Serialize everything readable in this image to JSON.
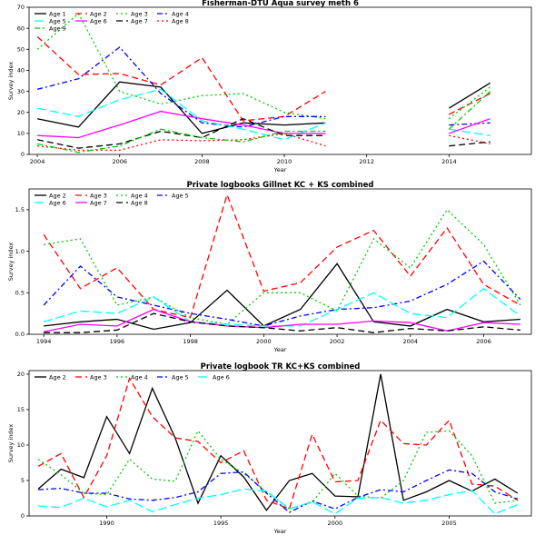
{
  "chart_data": [
    {
      "type": "line",
      "title": "Fisherman-DTU Aqua survey meth 6",
      "xlabel": "Year",
      "ylabel": "Survey index",
      "xlim": [
        2003.8,
        2016
      ],
      "ylim": [
        0,
        70
      ],
      "xticks": [
        2004,
        2006,
        2008,
        2010,
        2012,
        2014
      ],
      "yticks": [
        0,
        10,
        20,
        30,
        40,
        50,
        60,
        70
      ],
      "legend_placement": "top-left",
      "legend_columns": 4,
      "series": [
        {
          "name": "Age 1",
          "color": "#000000",
          "dash": "solid",
          "x": [
            2004,
            2005,
            2006,
            2007,
            2008,
            2009,
            2010,
            2011,
            2014,
            2015
          ],
          "y": [
            17,
            13,
            34.5,
            32,
            10,
            15,
            14,
            15,
            22,
            34
          ]
        },
        {
          "name": "Age 2",
          "color": "#ff0000",
          "dash": "dash",
          "x": [
            2004,
            2005,
            2006,
            2007,
            2008,
            2009,
            2010,
            2011,
            2014,
            2015
          ],
          "y": [
            56,
            38,
            38.5,
            33,
            46,
            16,
            18,
            30,
            19,
            29
          ]
        },
        {
          "name": "Age 3",
          "color": "#00cc00",
          "dash": "dot",
          "x": [
            2004,
            2005,
            2006,
            2007,
            2008,
            2009,
            2010,
            2011,
            2014,
            2015
          ],
          "y": [
            50,
            67,
            30,
            24,
            28,
            29,
            20,
            17,
            17,
            32
          ]
        },
        {
          "name": "Age 4",
          "color": "#0000ff",
          "dash": "dashdot",
          "x": [
            2004,
            2005,
            2006,
            2007,
            2008,
            2009,
            2010,
            2011,
            2014,
            2015
          ],
          "y": [
            31,
            36,
            51,
            29,
            15,
            13,
            18,
            18,
            14,
            15
          ]
        },
        {
          "name": "Age 5",
          "color": "#00ffff",
          "dash": "longdash",
          "x": [
            2004,
            2005,
            2006,
            2007,
            2008,
            2009,
            2010,
            2011,
            2014,
            2015
          ],
          "y": [
            22,
            18,
            26,
            31,
            16,
            12,
            7,
            15,
            12,
            9
          ]
        },
        {
          "name": "Age 6",
          "color": "#ff00ff",
          "dash": "solid",
          "x": [
            2004,
            2005,
            2006,
            2007,
            2008,
            2009,
            2010,
            2011,
            2014,
            2015
          ],
          "y": [
            9,
            8,
            14,
            20.5,
            17,
            14,
            10,
            10,
            10,
            17
          ]
        },
        {
          "name": "Age 7",
          "color": "#000000",
          "dash": "dash",
          "x": [
            2004,
            2005,
            2006,
            2007,
            2008,
            2009,
            2010,
            2011,
            2014,
            2015
          ],
          "y": [
            7,
            3,
            5,
            11,
            8,
            17,
            9,
            9,
            4,
            6
          ]
        },
        {
          "name": "Age 8",
          "color": "#ff0000",
          "dash": "dot",
          "x": [
            2004,
            2005,
            2006,
            2007,
            2008,
            2009,
            2010,
            2011,
            2014,
            2015
          ],
          "y": [
            4,
            2,
            2,
            7,
            6.5,
            7,
            10,
            4,
            9,
            5
          ]
        },
        {
          "name": "Age 9",
          "color": "#00cc00",
          "dash": "dashdot",
          "x": [
            2004,
            2005,
            2006,
            2007,
            2008,
            2009,
            2010,
            2011,
            2014,
            2015
          ],
          "y": [
            5,
            1,
            4,
            12,
            8,
            6,
            11,
            11,
            12,
            30
          ]
        }
      ]
    },
    {
      "type": "line",
      "title": "Private logbooks Gillnet KC + KS combined",
      "xlabel": "Year",
      "ylabel": "Survey index",
      "xlim": [
        1993.6,
        2007.3
      ],
      "ylim": [
        0,
        1.75
      ],
      "xticks": [
        1994,
        1996,
        1998,
        2000,
        2002,
        2004,
        2006
      ],
      "yticks": [
        0.0,
        0.5,
        1.0,
        1.5
      ],
      "legend_placement": "top-left",
      "legend_columns": 4,
      "series": [
        {
          "name": "Age 2",
          "color": "#000000",
          "dash": "solid",
          "x": [
            1994,
            1995,
            1996,
            1997,
            1998,
            1999,
            2000,
            2001,
            2002,
            2003,
            2004,
            2005,
            2006,
            2007
          ],
          "y": [
            0.1,
            0.15,
            0.18,
            0.06,
            0.14,
            0.53,
            0.1,
            0.3,
            0.85,
            0.15,
            0.1,
            0.3,
            0.15,
            0.18
          ]
        },
        {
          "name": "Age 3",
          "color": "#ff0000",
          "dash": "dash",
          "x": [
            1994,
            1995,
            1996,
            1997,
            1998,
            1999,
            2000,
            2001,
            2002,
            2003,
            2004,
            2005,
            2006,
            2007
          ],
          "y": [
            1.2,
            0.55,
            0.8,
            0.3,
            0.2,
            1.68,
            0.52,
            0.62,
            1.05,
            1.25,
            0.7,
            1.28,
            0.6,
            0.35
          ]
        },
        {
          "name": "Age 4",
          "color": "#00cc00",
          "dash": "dot",
          "x": [
            1994,
            1995,
            1996,
            1997,
            1998,
            1999,
            2000,
            2001,
            2002,
            2003,
            2004,
            2005,
            2006,
            2007
          ],
          "y": [
            1.08,
            1.15,
            0.35,
            0.45,
            0.2,
            0.12,
            0.5,
            0.5,
            0.28,
            1.15,
            0.8,
            1.5,
            1.08,
            0.35
          ]
        },
        {
          "name": "Age 5",
          "color": "#0000ff",
          "dash": "dashdot",
          "x": [
            1994,
            1995,
            1996,
            1997,
            1998,
            1999,
            2000,
            2001,
            2002,
            2003,
            2004,
            2005,
            2006,
            2007
          ],
          "y": [
            0.35,
            0.82,
            0.45,
            0.35,
            0.25,
            0.18,
            0.1,
            0.22,
            0.3,
            0.32,
            0.4,
            0.6,
            0.88,
            0.42
          ]
        },
        {
          "name": "Age 6",
          "color": "#00ffff",
          "dash": "longdash",
          "x": [
            1994,
            1995,
            1996,
            1997,
            1998,
            1999,
            2000,
            2001,
            2002,
            2003,
            2004,
            2005,
            2006,
            2007
          ],
          "y": [
            0.15,
            0.28,
            0.25,
            0.45,
            0.15,
            0.12,
            0.1,
            0.1,
            0.3,
            0.5,
            0.25,
            0.2,
            0.55,
            0.22
          ]
        },
        {
          "name": "Age 7",
          "color": "#ff00ff",
          "dash": "solid",
          "x": [
            1994,
            1995,
            1996,
            1997,
            1998,
            1999,
            2000,
            2001,
            2002,
            2003,
            2004,
            2005,
            2006,
            2007
          ],
          "y": [
            0.03,
            0.12,
            0.1,
            0.3,
            0.15,
            0.1,
            0.08,
            0.12,
            0.12,
            0.16,
            0.14,
            0.04,
            0.14,
            0.12
          ]
        },
        {
          "name": "Age 8",
          "color": "#000000",
          "dash": "dash",
          "x": [
            1994,
            1995,
            1996,
            1997,
            1998,
            1999,
            2000,
            2001,
            2002,
            2003,
            2004,
            2005,
            2006,
            2007
          ],
          "y": [
            0.02,
            0.02,
            0.05,
            0.25,
            0.15,
            0.1,
            0.08,
            0.04,
            0.08,
            0.02,
            0.07,
            0.04,
            0.09,
            0.05
          ]
        }
      ]
    },
    {
      "type": "line",
      "title": "Private logbook TR KC+KS combined",
      "xlabel": "Year",
      "ylabel": "Survey index",
      "xlim": [
        1986.6,
        2008.6
      ],
      "ylim": [
        0,
        20.5
      ],
      "xticks": [
        1990,
        1995,
        2000,
        2005
      ],
      "yticks": [
        0,
        5,
        10,
        15,
        20
      ],
      "legend_placement": "top-left",
      "legend_columns": 5,
      "series": [
        {
          "name": "Age 2",
          "color": "#000000",
          "dash": "solid",
          "x": [
            1987,
            1988,
            1989,
            1990,
            1991,
            1992,
            1993,
            1994,
            1995,
            1996,
            1997,
            1998,
            1999,
            2000,
            2001,
            2002,
            2003,
            2004,
            2005,
            2006,
            2007,
            2008
          ],
          "y": [
            3.8,
            6.6,
            5.4,
            14,
            8.8,
            18,
            11,
            1.8,
            8.5,
            5.5,
            0.8,
            5,
            6,
            2.8,
            2.7,
            20,
            2.2,
            3.4,
            5,
            3.5,
            5.2,
            3.2
          ]
        },
        {
          "name": "Age 3",
          "color": "#ff0000",
          "dash": "dash",
          "x": [
            1987,
            1988,
            1989,
            1990,
            1991,
            1992,
            1993,
            1994,
            1995,
            1996,
            1997,
            1998,
            1999,
            2000,
            2001,
            2002,
            2003,
            2004,
            2005,
            2006,
            2007,
            2008
          ],
          "y": [
            7,
            8.8,
            2.6,
            8.5,
            19.4,
            14,
            11,
            10.5,
            7.5,
            9.2,
            2.2,
            1,
            11.5,
            4.8,
            5,
            13.5,
            10.2,
            10,
            13.5,
            4.5,
            4.2,
            2.2
          ]
        },
        {
          "name": "Age 4",
          "color": "#00cc00",
          "dash": "dot",
          "x": [
            1987,
            1988,
            1989,
            1990,
            1991,
            1992,
            1993,
            1994,
            1995,
            1996,
            1997,
            1998,
            1999,
            2000,
            2001,
            2002,
            2003,
            2004,
            2005,
            2006,
            2007,
            2008
          ],
          "y": [
            8,
            5.8,
            3.2,
            3,
            8,
            5.2,
            4.9,
            12,
            8,
            6,
            3.4,
            1,
            1.9,
            6,
            2.8,
            2.5,
            5,
            11.8,
            12,
            8.5,
            1.8,
            2.2
          ]
        },
        {
          "name": "Age 5",
          "color": "#0000ff",
          "dash": "dashdot",
          "x": [
            1987,
            1988,
            1989,
            1990,
            1991,
            1992,
            1993,
            1994,
            1995,
            1996,
            1997,
            1998,
            1999,
            2000,
            2001,
            2002,
            2003,
            2004,
            2005,
            2006,
            2007,
            2008
          ],
          "y": [
            3.7,
            3.9,
            3.2,
            3.2,
            2.4,
            2.2,
            2.6,
            3.4,
            6,
            6.2,
            3.2,
            0.5,
            2.1,
            1,
            2.6,
            3.7,
            3.4,
            5,
            6.5,
            6,
            3.4,
            2.4
          ]
        },
        {
          "name": "Age 6",
          "color": "#00ffff",
          "dash": "longdash",
          "x": [
            1987,
            1988,
            1989,
            1990,
            1991,
            1992,
            1993,
            1994,
            1995,
            1996,
            1997,
            1998,
            1999,
            2000,
            2001,
            2002,
            2003,
            2004,
            2005,
            2006,
            2007,
            2008
          ],
          "y": [
            1.4,
            1.2,
            2.5,
            1.3,
            2.2,
            0.6,
            1.6,
            2.5,
            3,
            3.8,
            3.5,
            1,
            2,
            0.3,
            2.5,
            2.6,
            1.8,
            2.2,
            3,
            3.6,
            0.3,
            1.6
          ]
        }
      ]
    }
  ]
}
